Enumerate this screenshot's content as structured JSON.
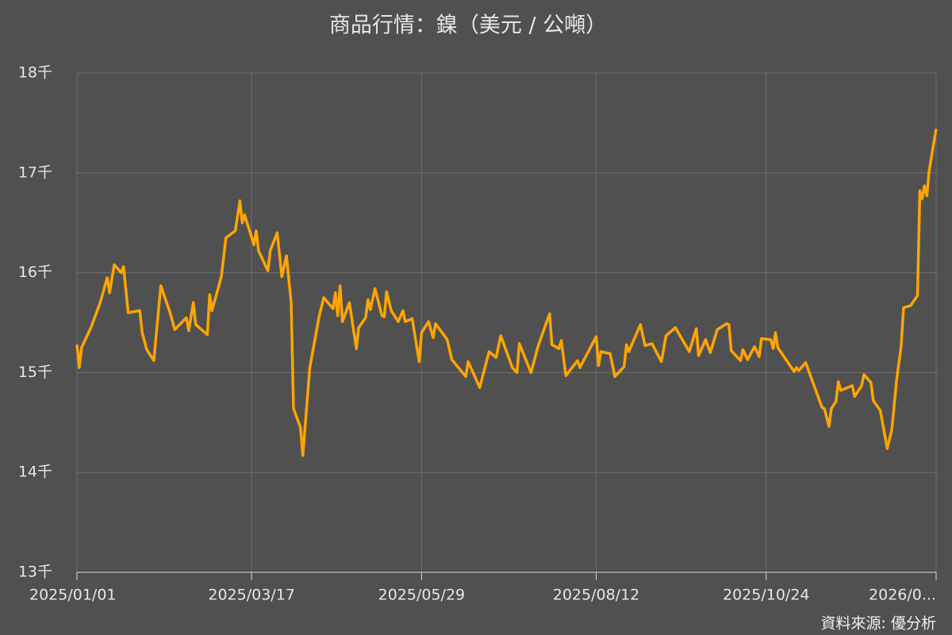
{
  "chart_data": {
    "type": "line",
    "title": "商品行情：鎳（美元 / 公噸）",
    "source": "資料來源: 優分析",
    "x": [
      "2025/01/01",
      "2025/01/02",
      "2025/01/03",
      "2025/01/07",
      "2025/01/11",
      "2025/01/14",
      "2025/01/15",
      "2025/01/17",
      "2025/01/20",
      "2025/01/21",
      "2025/01/23",
      "2025/01/28",
      "2025/01/29",
      "2025/01/31",
      "2025/02/03",
      "2025/02/06",
      "2025/02/10",
      "2025/02/12",
      "2025/02/17",
      "2025/02/18",
      "2025/02/20",
      "2025/02/21",
      "2025/02/26",
      "2025/02/27",
      "2025/02/28",
      "2025/03/04",
      "2025/03/06",
      "2025/03/10",
      "2025/03/12",
      "2025/03/13",
      "2025/03/14",
      "2025/03/18",
      "2025/03/19",
      "2025/03/20",
      "2025/03/24",
      "2025/03/25",
      "2025/03/28",
      "2025/03/30",
      "2025/04/01",
      "2025/04/03",
      "2025/04/04",
      "2025/04/07",
      "2025/04/08",
      "2025/04/11",
      "2025/04/15",
      "2025/04/17",
      "2025/04/21",
      "2025/04/22",
      "2025/04/23",
      "2025/04/24",
      "2025/04/25",
      "2025/04/28",
      "2025/05/01",
      "2025/05/02",
      "2025/05/05",
      "2025/05/06",
      "2025/05/07",
      "2025/05/09",
      "2025/05/12",
      "2025/05/13",
      "2025/05/14",
      "2025/05/16",
      "2025/05/19",
      "2025/05/21",
      "2025/05/22",
      "2025/05/25",
      "2025/05/28",
      "2025/05/29",
      "2025/06/01",
      "2025/06/03",
      "2025/06/04",
      "2025/06/09",
      "2025/06/11",
      "2025/06/17",
      "2025/06/18",
      "2025/06/23",
      "2025/06/27",
      "2025/06/30",
      "2025/07/02",
      "2025/07/07",
      "2025/07/09",
      "2025/07/10",
      "2025/07/15",
      "2025/07/18",
      "2025/07/23",
      "2025/07/24",
      "2025/07/27",
      "2025/07/28",
      "2025/07/30",
      "2025/08/04",
      "2025/08/05",
      "2025/08/12",
      "2025/08/13",
      "2025/08/14",
      "2025/08/18",
      "2025/08/20",
      "2025/08/24",
      "2025/08/25",
      "2025/08/26",
      "2025/08/31",
      "2025/09/02",
      "2025/09/05",
      "2025/09/09",
      "2025/09/11",
      "2025/09/15",
      "2025/09/21",
      "2025/09/24",
      "2025/09/25",
      "2025/09/28",
      "2025/09/30",
      "2025/10/03",
      "2025/10/07",
      "2025/10/08",
      "2025/10/09",
      "2025/10/13",
      "2025/10/14",
      "2025/10/16",
      "2025/10/19",
      "2025/10/21",
      "2025/10/22",
      "2025/10/26",
      "2025/10/27",
      "2025/10/28",
      "2025/10/29",
      "2025/11/05",
      "2025/11/06",
      "2025/11/07",
      "2025/11/10",
      "2025/11/12",
      "2025/11/17",
      "2025/11/18",
      "2025/11/20",
      "2025/11/21",
      "2025/11/23",
      "2025/11/24",
      "2025/11/25",
      "2025/11/30",
      "2025/12/01",
      "2025/12/04",
      "2025/12/05",
      "2025/12/08",
      "2025/12/09",
      "2025/12/12",
      "2025/12/15",
      "2025/12/17",
      "2025/12/19",
      "2025/12/21",
      "2025/12/22",
      "2025/12/25",
      "2025/12/28",
      "2025/12/29",
      "2025/12/30",
      "2025/12/31",
      "2026/01/01",
      "2026/01/02",
      "2026/01/05"
    ],
    "series": [
      {
        "name": "鎳",
        "color": "#ffa500",
        "values": [
          15280,
          15050,
          15250,
          15450,
          15700,
          15950,
          15800,
          16080,
          16000,
          16060,
          15600,
          15620,
          15400,
          15230,
          15120,
          15870,
          15600,
          15430,
          15550,
          15420,
          15700,
          15480,
          15380,
          15780,
          15620,
          15960,
          16350,
          16420,
          16720,
          16500,
          16580,
          16280,
          16420,
          16220,
          16020,
          16220,
          16400,
          15960,
          16170,
          15700,
          14640,
          14450,
          14170,
          15050,
          15560,
          15750,
          15640,
          15800,
          15570,
          15870,
          15510,
          15700,
          15240,
          15450,
          15550,
          15730,
          15630,
          15840,
          15570,
          15560,
          15810,
          15620,
          15510,
          15620,
          15510,
          15540,
          15110,
          15400,
          15510,
          15350,
          15490,
          15330,
          15130,
          14960,
          15110,
          14850,
          15210,
          15150,
          15370,
          15050,
          15000,
          15290,
          15000,
          15260,
          15590,
          15280,
          15240,
          15320,
          14970,
          15120,
          15050,
          15360,
          15070,
          15210,
          15190,
          14960,
          15060,
          15280,
          15210,
          15480,
          15270,
          15290,
          15110,
          15370,
          15450,
          15210,
          15440,
          15170,
          15330,
          15200,
          15430,
          15490,
          15480,
          15220,
          15120,
          15230,
          15130,
          15260,
          15160,
          15340,
          15330,
          15240,
          15400,
          15250,
          15010,
          15050,
          15020,
          15100,
          14970,
          14650,
          14640,
          14460,
          14640,
          14710,
          14910,
          14820,
          14870,
          14760,
          14870,
          14980,
          14900,
          14720,
          14620,
          14240,
          14430,
          14920,
          15270,
          15650,
          15670,
          15770,
          16820,
          16740,
          16870,
          16770,
          17020,
          17440
        ]
      }
    ],
    "xlim": [
      "2025/01/01",
      "2026/01/05"
    ],
    "xticks": [
      "2025/01/01",
      "2025/03/17",
      "2025/05/29",
      "2025/08/12",
      "2025/10/24",
      {
        "value": "2026/01/05",
        "label": "2026/0..."
      }
    ],
    "ylim": [
      13000,
      18000
    ],
    "yticks": [
      {
        "value": 13000,
        "label": "13千"
      },
      {
        "value": 14000,
        "label": "14千"
      },
      {
        "value": 15000,
        "label": "15千"
      },
      {
        "value": 16000,
        "label": "16千"
      },
      {
        "value": 17000,
        "label": "17千"
      },
      {
        "value": 18000,
        "label": "18千"
      }
    ],
    "grid": true
  }
}
